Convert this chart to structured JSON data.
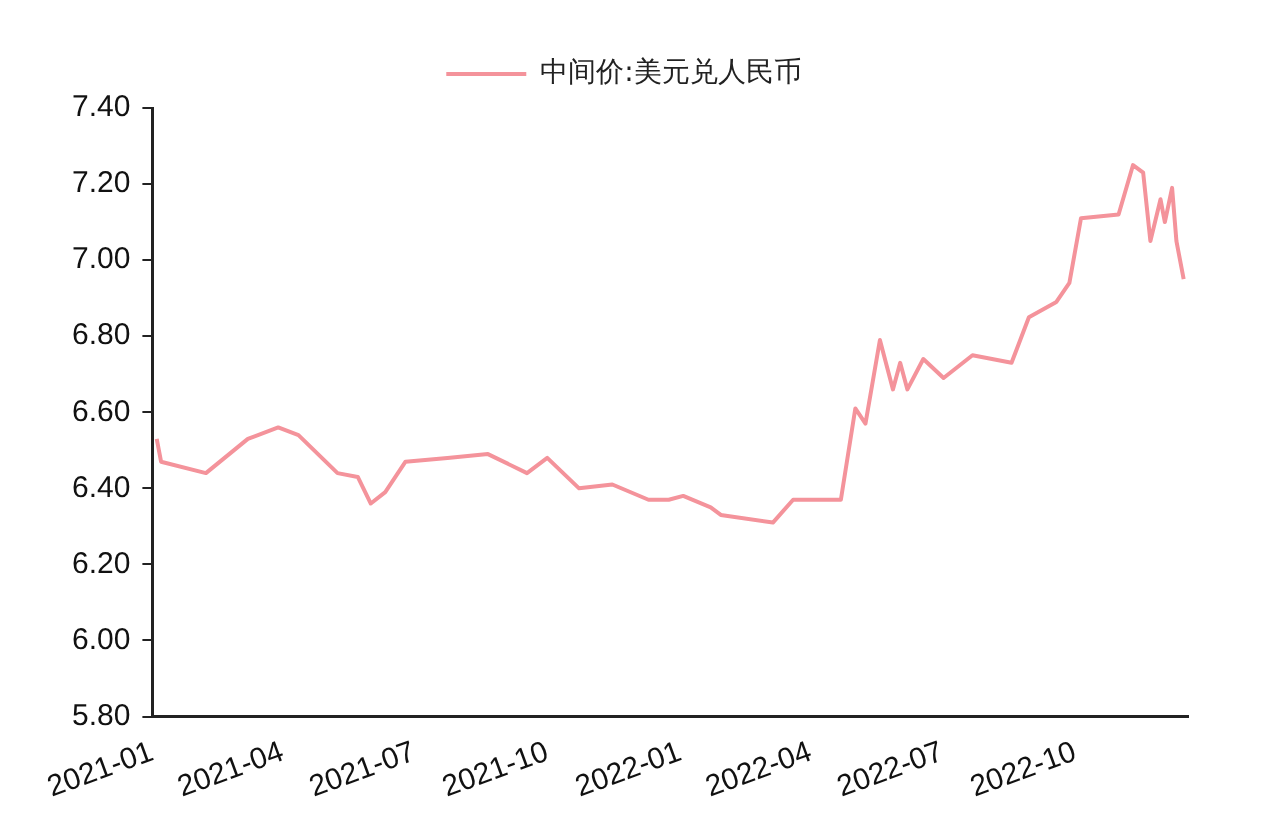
{
  "chart_data": {
    "type": "line",
    "x": [
      "2021-01-04",
      "2021-01-07",
      "2021-02-07",
      "2021-03-08",
      "2021-03-29",
      "2021-04-12",
      "2021-05-09",
      "2021-05-23",
      "2021-06-01",
      "2021-06-11",
      "2021-06-25",
      "2021-07-24",
      "2021-08-21",
      "2021-09-17",
      "2021-10-01",
      "2021-10-23",
      "2021-11-15",
      "2021-12-10",
      "2021-12-24",
      "2022-01-03",
      "2022-01-22",
      "2022-01-29",
      "2022-03-06",
      "2022-03-20",
      "2022-04-22",
      "2022-05-02",
      "2022-05-09",
      "2022-05-19",
      "2022-05-28",
      "2022-06-02",
      "2022-06-07",
      "2022-06-18",
      "2022-07-02",
      "2022-07-22",
      "2022-08-18",
      "2022-08-30",
      "2022-09-18",
      "2022-09-27",
      "2022-10-05",
      "2022-10-31",
      "2022-11-10",
      "2022-11-17",
      "2022-11-22",
      "2022-11-29",
      "2022-12-02",
      "2022-12-07",
      "2022-12-10",
      "2022-12-15"
    ],
    "series": [
      {
        "name": "中间价:美元兑人民币",
        "color": "#f4939b",
        "values": [
          6.53,
          6.47,
          6.44,
          6.53,
          6.56,
          6.54,
          6.44,
          6.43,
          6.36,
          6.39,
          6.47,
          6.48,
          6.49,
          6.44,
          6.48,
          6.4,
          6.41,
          6.37,
          6.37,
          6.38,
          6.35,
          6.33,
          6.31,
          6.37,
          6.37,
          6.61,
          6.57,
          6.79,
          6.66,
          6.73,
          6.66,
          6.74,
          6.69,
          6.75,
          6.73,
          6.85,
          6.89,
          6.94,
          7.11,
          7.12,
          7.25,
          7.23,
          7.05,
          7.16,
          7.1,
          7.19,
          7.05,
          6.95
        ]
      }
    ],
    "xlim": [
      "2021-01-01",
      "2022-12-18"
    ],
    "xticks": [
      "2021-01",
      "2021-04",
      "2021-07",
      "2021-10",
      "2022-01",
      "2022-04",
      "2022-07",
      "2022-10"
    ],
    "ylim": [
      5.8,
      7.4
    ],
    "yticks": [
      {
        "value": 5.8,
        "label": "5.80"
      },
      {
        "value": 6.0,
        "label": "6.00"
      },
      {
        "value": 6.2,
        "label": "6.20"
      },
      {
        "value": 6.4,
        "label": "6.40"
      },
      {
        "value": 6.6,
        "label": "6.60"
      },
      {
        "value": 6.8,
        "label": "6.80"
      },
      {
        "value": 7.0,
        "label": "7.00"
      },
      {
        "value": 7.2,
        "label": "7.20"
      },
      {
        "value": 7.4,
        "label": "7.40"
      }
    ],
    "grid": false,
    "legend": "top",
    "marker": "none",
    "line_style": "solid"
  }
}
